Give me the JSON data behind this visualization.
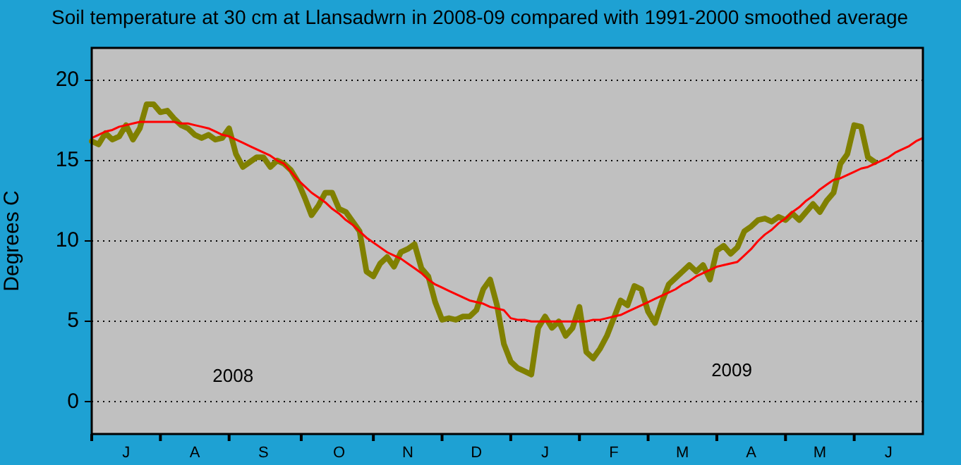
{
  "chart_data": {
    "type": "line",
    "title": "Soil temperature at 30 cm at Llansadwrn in 2008-09 compared with 1991-2000 smoothed average",
    "ylabel": "Degrees C",
    "categories": [
      null,
      null,
      null,
      null,
      null,
      "J",
      null,
      null,
      null,
      null,
      null,
      null,
      null,
      null,
      null,
      "A",
      null,
      null,
      null,
      null,
      null,
      null,
      null,
      null,
      null,
      "S",
      null,
      null,
      null,
      null,
      null,
      null,
      null,
      null,
      null,
      null,
      "O",
      null,
      null,
      null,
      null,
      null,
      null,
      null,
      null,
      null,
      "N",
      null,
      null,
      null,
      null,
      null,
      null,
      null,
      null,
      null,
      "D",
      null,
      null,
      null,
      null,
      null,
      null,
      null,
      null,
      null,
      "J",
      null,
      null,
      null,
      null,
      null,
      null,
      null,
      null,
      null,
      "F",
      null,
      null,
      null,
      null,
      null,
      null,
      null,
      null,
      null,
      "M",
      null,
      null,
      null,
      null,
      null,
      null,
      null,
      null,
      null,
      "A",
      null,
      null,
      null,
      null,
      null,
      null,
      null,
      null,
      null,
      "M",
      null,
      null,
      null,
      null,
      null,
      null,
      null,
      null,
      null,
      "J",
      null,
      null,
      null,
      null,
      null
    ],
    "ylim": [
      -2,
      22
    ],
    "yticks": [
      0,
      5,
      10,
      15,
      20
    ],
    "grid": "y",
    "legend": false,
    "marker": "none",
    "annotations": [
      "2008",
      "2009"
    ],
    "series": [
      {
        "color": "#808000",
        "values": [
          16.2,
          16.0,
          16.7,
          16.3,
          16.5,
          17.2,
          16.3,
          17.0,
          18.5,
          18.5,
          18.0,
          18.1,
          17.6,
          17.2,
          17.0,
          16.6,
          16.4,
          16.6,
          16.3,
          16.4,
          17.0,
          15.4,
          14.6,
          14.9,
          15.2,
          15.2,
          14.6,
          15.0,
          14.8,
          14.4,
          13.7,
          12.7,
          11.6,
          12.2,
          13.0,
          13.0,
          12.0,
          11.8,
          11.2,
          10.6,
          8.1,
          7.8,
          8.6,
          9.0,
          8.4,
          9.3,
          9.5,
          9.8,
          8.3,
          7.8,
          6.2,
          5.1,
          5.2,
          5.1,
          5.3,
          5.3,
          5.7,
          7.0,
          7.6,
          6.0,
          3.6,
          2.5,
          2.1,
          1.9,
          1.7,
          4.6,
          5.3,
          4.6,
          5.0,
          4.1,
          4.6,
          5.9,
          3.1,
          2.7,
          3.3,
          4.1,
          5.2,
          6.3,
          6.0,
          7.2,
          7.0,
          5.6,
          4.9,
          6.2,
          7.3,
          7.7,
          8.1,
          8.5,
          8.1,
          8.5,
          7.6,
          9.4,
          9.7,
          9.2,
          9.6,
          10.6,
          10.9,
          11.3,
          11.4,
          11.2,
          11.5,
          11.3,
          11.7,
          11.3,
          11.8,
          12.3,
          11.8,
          12.5,
          13.0,
          14.8,
          15.4,
          17.2,
          17.1,
          15.2,
          14.9,
          null,
          null,
          null,
          null,
          null,
          null,
          null
        ]
      },
      {
        "color": "#ff0000",
        "values": [
          16.4,
          16.6,
          16.8,
          16.9,
          17.1,
          17.2,
          17.3,
          17.4,
          17.4,
          17.4,
          17.4,
          17.4,
          17.4,
          17.3,
          17.3,
          17.2,
          17.1,
          17.0,
          16.8,
          16.6,
          16.5,
          16.3,
          16.1,
          15.9,
          15.7,
          15.5,
          15.3,
          15.0,
          14.8,
          14.3,
          13.8,
          13.4,
          13.0,
          12.7,
          12.4,
          12.0,
          11.7,
          11.3,
          11.0,
          10.6,
          10.2,
          9.9,
          9.6,
          9.3,
          9.1,
          8.9,
          8.6,
          8.3,
          8.0,
          7.6,
          7.3,
          7.1,
          6.9,
          6.7,
          6.5,
          6.3,
          6.2,
          6.1,
          5.9,
          5.8,
          5.7,
          5.2,
          5.1,
          5.1,
          5.0,
          5.0,
          5.0,
          5.0,
          5.0,
          5.0,
          5.0,
          5.0,
          5.0,
          5.1,
          5.1,
          5.2,
          5.3,
          5.4,
          5.6,
          5.8,
          6.0,
          6.2,
          6.4,
          6.6,
          6.8,
          7.0,
          7.3,
          7.5,
          7.8,
          8.0,
          8.2,
          8.4,
          8.5,
          8.6,
          8.7,
          9.1,
          9.5,
          10.0,
          10.4,
          10.7,
          11.1,
          11.4,
          11.8,
          12.1,
          12.5,
          12.8,
          13.2,
          13.5,
          13.8,
          13.9,
          14.1,
          14.3,
          14.5,
          14.6,
          14.8,
          15.0,
          15.2,
          15.5,
          15.7,
          15.9,
          16.2,
          16.4
        ]
      }
    ]
  }
}
